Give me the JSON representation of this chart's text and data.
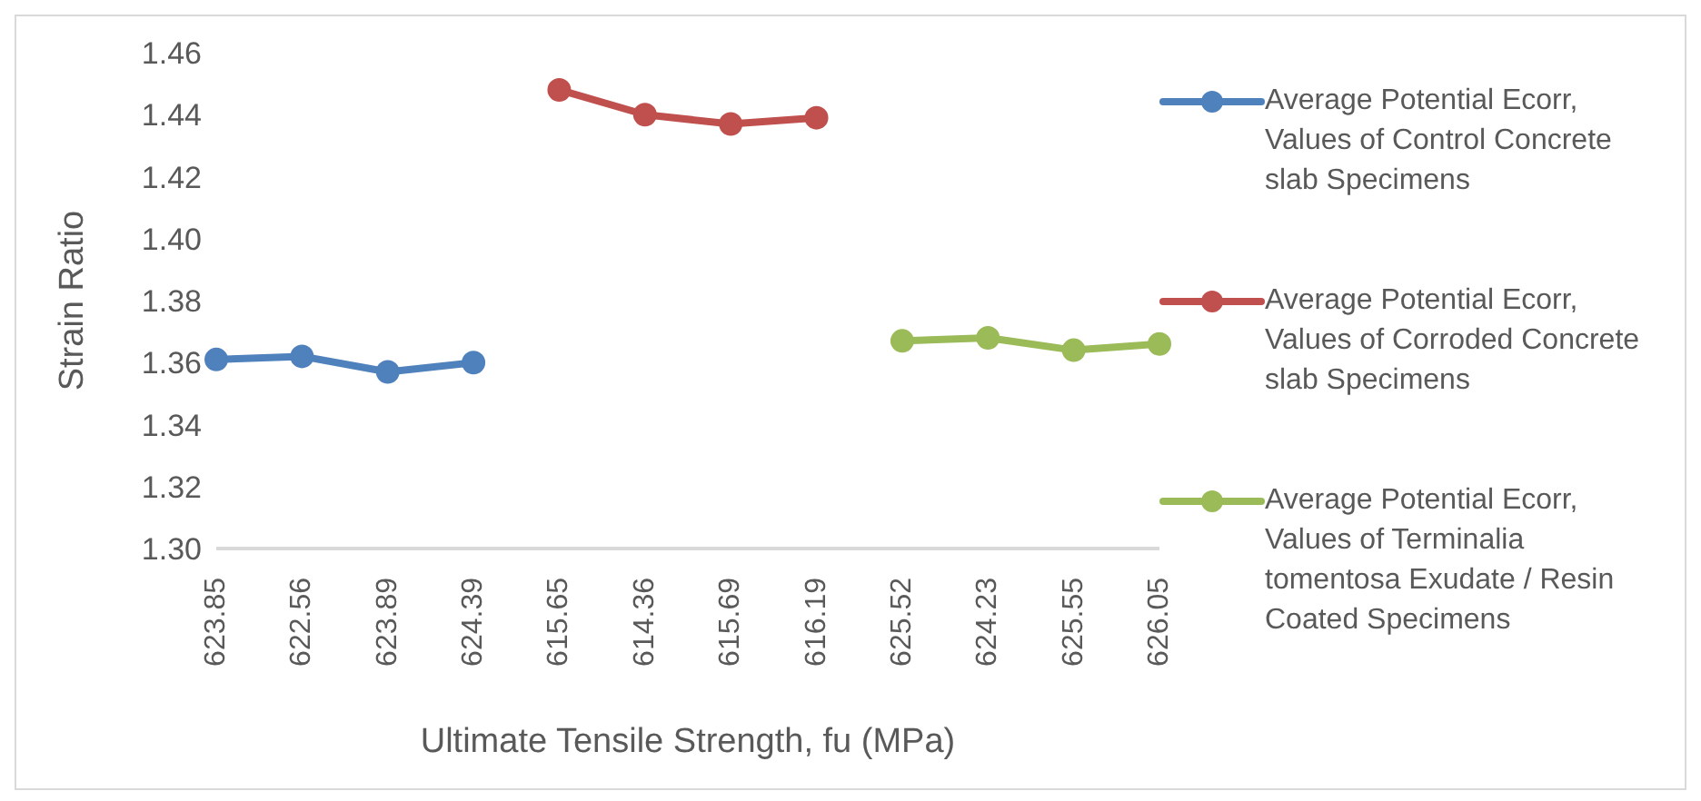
{
  "chart_data": {
    "type": "line",
    "xlabel": "Ultimate Tensile Strength, fu (MPa)",
    "ylabel": "Strain Ratio",
    "categories": [
      "623.85",
      "622.56",
      "623.89",
      "624.39",
      "615.65",
      "614.36",
      "615.69",
      "616.19",
      "625.52",
      "624.23",
      "625.55",
      "626.05"
    ],
    "series": [
      {
        "name": "Average Potential Ecorr, Values of Control Concrete slab Specimens",
        "color": "#4f81bd",
        "values": [
          1.361,
          1.362,
          1.357,
          1.36,
          null,
          null,
          null,
          null,
          null,
          null,
          null,
          null
        ]
      },
      {
        "name": "Average Potential Ecorr, Values of Corroded Concrete slab Specimens",
        "color": "#c0504d",
        "values": [
          null,
          null,
          null,
          null,
          1.448,
          1.44,
          1.437,
          1.439,
          null,
          null,
          null,
          null
        ]
      },
      {
        "name": "Average Potential Ecorr, Values of Terminalia tomentosa Exudate / Resin Coated Specimens",
        "color": "#9bbb59",
        "values": [
          null,
          null,
          null,
          null,
          null,
          null,
          null,
          null,
          1.367,
          1.368,
          1.364,
          1.366
        ]
      }
    ],
    "ylim": [
      1.3,
      1.46
    ],
    "yticks": [
      {
        "value": 1.3,
        "label": "1.30"
      },
      1.32,
      1.34,
      1.36,
      1.38,
      {
        "value": 1.4,
        "label": "1.40"
      },
      1.42,
      1.44,
      1.46
    ],
    "grid": false,
    "legend": "right",
    "marker": "circle",
    "line_style": "solid"
  }
}
